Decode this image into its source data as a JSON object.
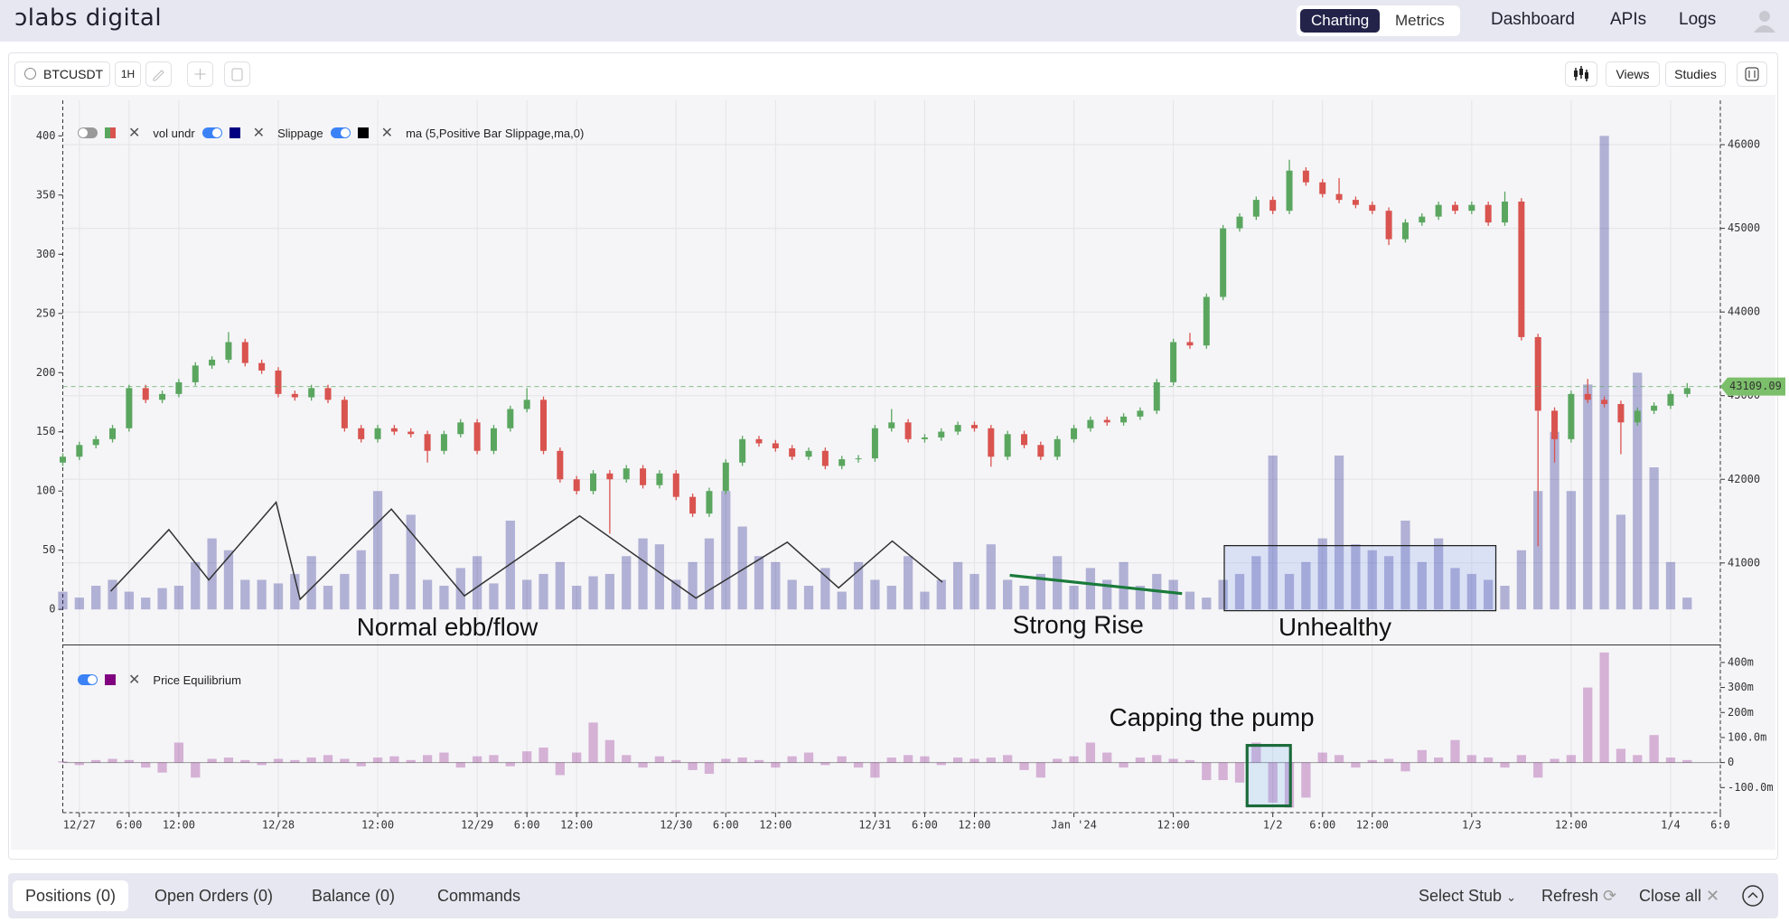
{
  "nav": {
    "logo": "ↄlabs digital",
    "tabs": [
      "Charting",
      "Metrics"
    ],
    "links": [
      "Dashboard",
      "APIs",
      "Logs"
    ]
  },
  "toolbar": {
    "symbol": "BTCUSDT",
    "interval": "1H",
    "buttons": [
      "Views",
      "Studies"
    ]
  },
  "chart_data": {
    "type": "candlestick",
    "up_color": "#5aa65f",
    "down_color": "#d9534f",
    "grid": true,
    "x": [
      -2,
      0,
      2,
      4,
      6,
      8,
      10,
      12,
      14,
      16,
      18,
      20,
      22,
      24,
      26,
      28,
      30,
      32,
      34,
      36,
      38,
      40,
      42,
      44,
      46,
      48,
      50,
      52,
      54,
      56,
      58,
      60,
      62,
      64,
      66,
      68,
      70,
      72,
      74,
      76,
      78,
      80,
      82,
      84,
      86,
      88,
      90,
      92,
      94,
      96,
      98,
      100,
      102,
      104,
      106,
      108,
      110,
      112,
      114,
      116,
      118,
      120,
      122,
      124,
      126,
      128,
      130,
      132,
      134,
      136,
      138,
      140,
      142,
      144,
      146,
      148,
      150,
      152,
      154,
      156,
      158,
      160,
      162,
      164,
      166,
      168,
      170,
      172,
      174,
      176,
      178,
      180,
      182,
      184,
      186,
      188,
      190,
      192,
      194
    ],
    "ohlc": [
      [
        42200,
        42310,
        42160,
        42270
      ],
      [
        42270,
        42450,
        42230,
        42410
      ],
      [
        42410,
        42520,
        42370,
        42480
      ],
      [
        42480,
        42650,
        42440,
        42610
      ],
      [
        42610,
        43130,
        42570,
        43090
      ],
      [
        43090,
        43130,
        42910,
        42950
      ],
      [
        42950,
        43060,
        42910,
        43020
      ],
      [
        43020,
        43200,
        42980,
        43160
      ],
      [
        43160,
        43400,
        43120,
        43360
      ],
      [
        43360,
        43470,
        43320,
        43430
      ],
      [
        43430,
        43760,
        43390,
        43640
      ],
      [
        43640,
        43680,
        43350,
        43390
      ],
      [
        43390,
        43430,
        43260,
        43300
      ],
      [
        43300,
        43340,
        42980,
        43020
      ],
      [
        43020,
        43060,
        42940,
        42980
      ],
      [
        42980,
        43130,
        42940,
        43090
      ],
      [
        43090,
        43130,
        42910,
        42950
      ],
      [
        42950,
        42990,
        42570,
        42610
      ],
      [
        42610,
        42650,
        42440,
        42480
      ],
      [
        42480,
        42650,
        42440,
        42610
      ],
      [
        42610,
        42650,
        42530,
        42570
      ],
      [
        42570,
        42610,
        42500,
        42540
      ],
      [
        42540,
        42580,
        42200,
        42340
      ],
      [
        42340,
        42580,
        42300,
        42540
      ],
      [
        42540,
        42720,
        42500,
        42680
      ],
      [
        42680,
        42720,
        42300,
        42340
      ],
      [
        42340,
        42650,
        42300,
        42610
      ],
      [
        42610,
        42880,
        42570,
        42840
      ],
      [
        42840,
        43090,
        42800,
        42950
      ],
      [
        42950,
        42990,
        42300,
        42340
      ],
      [
        42340,
        42380,
        41960,
        42000
      ],
      [
        42000,
        42040,
        41820,
        41860
      ],
      [
        41860,
        42110,
        41820,
        42070
      ],
      [
        42070,
        42110,
        41350,
        42000
      ],
      [
        42000,
        42170,
        41960,
        42130
      ],
      [
        42130,
        42170,
        41890,
        41930
      ],
      [
        41930,
        42110,
        41890,
        42070
      ],
      [
        42070,
        42110,
        41750,
        41790
      ],
      [
        41790,
        41830,
        41550,
        41590
      ],
      [
        41590,
        41900,
        41550,
        41860
      ],
      [
        41860,
        42240,
        41820,
        42200
      ],
      [
        42200,
        42520,
        42160,
        42480
      ],
      [
        42480,
        42520,
        42390,
        42430
      ],
      [
        42430,
        42470,
        42330,
        42370
      ],
      [
        42370,
        42410,
        42230,
        42270
      ],
      [
        42270,
        42380,
        42230,
        42340
      ],
      [
        42340,
        42380,
        42120,
        42160
      ],
      [
        42160,
        42280,
        42120,
        42240
      ],
      [
        42240,
        42290,
        42200,
        42250
      ],
      [
        42250,
        42650,
        42210,
        42610
      ],
      [
        42610,
        42840,
        42570,
        42680
      ],
      [
        42680,
        42720,
        42440,
        42480
      ],
      [
        42480,
        42540,
        42440,
        42500
      ],
      [
        42500,
        42610,
        42460,
        42570
      ],
      [
        42570,
        42690,
        42530,
        42650
      ],
      [
        42650,
        42690,
        42570,
        42610
      ],
      [
        42610,
        42650,
        42150,
        42270
      ],
      [
        42270,
        42580,
        42230,
        42540
      ],
      [
        42540,
        42580,
        42370,
        42410
      ],
      [
        42410,
        42450,
        42230,
        42270
      ],
      [
        42270,
        42520,
        42230,
        42480
      ],
      [
        42480,
        42650,
        42440,
        42610
      ],
      [
        42610,
        42750,
        42570,
        42710
      ],
      [
        42710,
        42750,
        42640,
        42680
      ],
      [
        42680,
        42790,
        42640,
        42750
      ],
      [
        42750,
        42860,
        42710,
        42820
      ],
      [
        42820,
        43200,
        42780,
        43160
      ],
      [
        43160,
        43680,
        43120,
        43640
      ],
      [
        43640,
        43750,
        43560,
        43600
      ],
      [
        43600,
        44220,
        43560,
        44180
      ],
      [
        44180,
        45040,
        44140,
        45000
      ],
      [
        45000,
        45180,
        44960,
        45140
      ],
      [
        45140,
        45380,
        45100,
        45340
      ],
      [
        45340,
        45380,
        45170,
        45210
      ],
      [
        45210,
        45820,
        45170,
        45690
      ],
      [
        45690,
        45730,
        45510,
        45550
      ],
      [
        45550,
        45590,
        45370,
        45410
      ],
      [
        45410,
        45600,
        45300,
        45340
      ],
      [
        45340,
        45380,
        45240,
        45280
      ],
      [
        45280,
        45320,
        45170,
        45210
      ],
      [
        45210,
        45250,
        44800,
        44870
      ],
      [
        44870,
        45110,
        44830,
        45070
      ],
      [
        45070,
        45180,
        45030,
        45140
      ],
      [
        45140,
        45320,
        45100,
        45280
      ],
      [
        45280,
        45320,
        45170,
        45210
      ],
      [
        45210,
        45320,
        45170,
        45280
      ],
      [
        45280,
        45320,
        45030,
        45070
      ],
      [
        45070,
        45440,
        45030,
        45320
      ],
      [
        45320,
        45360,
        43660,
        43700
      ],
      [
        43700,
        43740,
        41200,
        42820
      ],
      [
        42820,
        42860,
        42200,
        42480
      ],
      [
        42480,
        43060,
        42440,
        43020
      ],
      [
        43020,
        43200,
        42910,
        42950
      ],
      [
        42950,
        42990,
        42860,
        42900
      ],
      [
        42900,
        42940,
        42300,
        42680
      ],
      [
        42680,
        42860,
        42640,
        42820
      ],
      [
        42820,
        42920,
        42780,
        42880
      ],
      [
        42880,
        43060,
        42840,
        43020
      ],
      [
        43020,
        43150,
        42980,
        43090
      ]
    ],
    "xlim": [
      -2,
      198
    ],
    "xticks": [
      {
        "value": 0,
        "label": "12/27"
      },
      {
        "value": 6,
        "label": "6:00"
      },
      {
        "value": 12,
        "label": "12:00"
      },
      {
        "value": 24,
        "label": "12/28"
      },
      {
        "value": 36,
        "label": "12:00"
      },
      {
        "value": 48,
        "label": "12/29"
      },
      {
        "value": 54,
        "label": "6:00"
      },
      {
        "value": 60,
        "label": "12:00"
      },
      {
        "value": 72,
        "label": "12/30"
      },
      {
        "value": 78,
        "label": "6:00"
      },
      {
        "value": 84,
        "label": "12:00"
      },
      {
        "value": 96,
        "label": "12/31"
      },
      {
        "value": 102,
        "label": "6:00"
      },
      {
        "value": 108,
        "label": "12:00"
      },
      {
        "value": 120,
        "label": "Jan '24"
      },
      {
        "value": 132,
        "label": "12:00"
      },
      {
        "value": 144,
        "label": "1/2"
      },
      {
        "value": 150,
        "label": "6:00"
      },
      {
        "value": 156,
        "label": "12:00"
      },
      {
        "value": 168,
        "label": "1/3"
      },
      {
        "value": 180,
        "label": "12:00"
      },
      {
        "value": 192,
        "label": "1/4"
      },
      {
        "value": 198,
        "label": "6:0"
      }
    ],
    "ylim": [
      -30,
      430
    ],
    "yticks": [
      0,
      50,
      100,
      150,
      200,
      250,
      300,
      350,
      400
    ],
    "y2lim": [
      40020,
      46530
    ],
    "y2ticks": [
      41000,
      42000,
      43000,
      44000,
      45000,
      46000
    ],
    "last_price": 43109.09,
    "series": [
      {
        "name": "vol undr",
        "color": "#000080",
        "values": [
          15,
          10,
          20,
          25,
          15,
          10,
          18,
          20,
          40,
          60,
          50,
          25,
          25,
          22,
          30,
          45,
          20,
          30,
          50,
          100,
          30,
          80,
          25,
          20,
          35,
          45,
          22,
          75,
          25,
          30,
          40,
          20,
          28,
          30,
          45,
          60,
          55,
          25,
          40,
          60,
          100,
          70,
          45,
          40,
          25,
          20,
          35,
          15,
          40,
          25,
          20,
          45,
          15,
          25,
          40,
          30,
          55,
          25,
          20,
          30,
          45,
          20,
          35,
          25,
          40,
          20,
          30,
          25,
          15,
          10,
          25,
          30,
          45,
          130,
          30,
          40,
          60,
          130,
          55,
          50,
          45,
          75,
          40,
          60,
          35,
          30,
          25,
          20,
          50,
          100,
          150,
          100,
          190,
          400,
          80,
          200,
          120,
          40,
          10
        ]
      }
    ],
    "legend": [
      {
        "name": "Slippage",
        "color": "#000000"
      },
      {
        "name": "ma (5,Positive Bar Slippage,ma,0)"
      }
    ],
    "annotations": [
      "Normal ebb/flow",
      "Strong Rise",
      "Unhealthy",
      "Capping the pump"
    ],
    "lower": {
      "type": "bar",
      "ylim": [
        -200,
        470
      ],
      "yticks": [
        {
          "value": -100,
          "label": "-100.0m"
        },
        0,
        {
          "value": 100,
          "label": "100.0m"
        },
        {
          "value": 200,
          "label": "200m"
        },
        {
          "value": 300,
          "label": "300m"
        },
        {
          "value": 400,
          "label": "400m"
        }
      ],
      "series": [
        {
          "name": "Price Equilibrium",
          "color": "#800080",
          "values": [
            5,
            -10,
            10,
            15,
            10,
            -20,
            -40,
            80,
            -60,
            15,
            20,
            10,
            -10,
            15,
            10,
            20,
            30,
            15,
            -15,
            20,
            25,
            10,
            30,
            40,
            -20,
            25,
            30,
            -15,
            45,
            60,
            -50,
            40,
            160,
            90,
            30,
            -20,
            25,
            10,
            -30,
            -45,
            15,
            20,
            10,
            -20,
            25,
            40,
            -10,
            25,
            -20,
            -60,
            20,
            30,
            25,
            -10,
            20,
            15,
            20,
            30,
            -30,
            -60,
            15,
            25,
            80,
            40,
            -20,
            20,
            30,
            15,
            10,
            -70,
            -70,
            -80,
            80,
            -160,
            -180,
            -140,
            40,
            30,
            -20,
            10,
            15,
            -35,
            50,
            20,
            90,
            30,
            20,
            -20,
            30,
            -60,
            15,
            30,
            300,
            440,
            55,
            30,
            110,
            20,
            10
          ]
        }
      ]
    }
  },
  "bottom": {
    "tabs": [
      "Positions (0)",
      "Open Orders (0)",
      "Balance (0)",
      "Commands"
    ],
    "actions": [
      "Select Stub",
      "Refresh",
      "Close all"
    ]
  }
}
